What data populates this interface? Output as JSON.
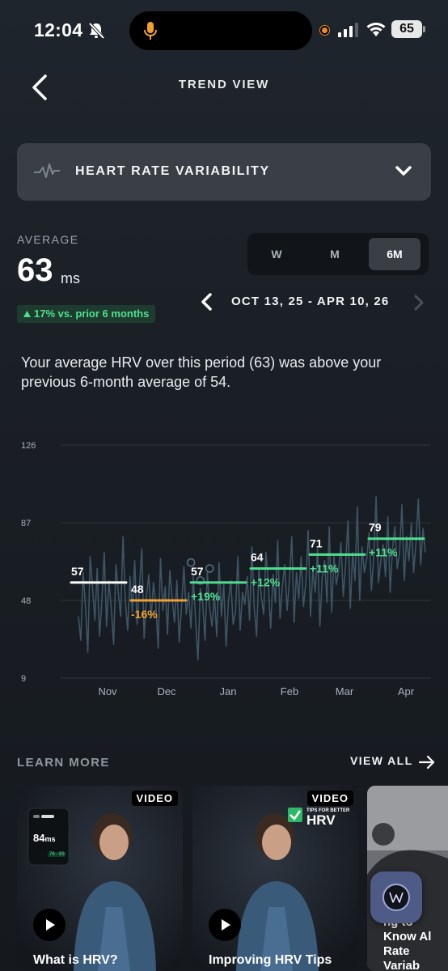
{
  "status_bar": {
    "time": "12:04",
    "battery": "65"
  },
  "header": {
    "title": "TREND VIEW"
  },
  "metric": {
    "label": "HEART RATE VARIABILITY"
  },
  "average": {
    "label": "AVERAGE",
    "value": "63",
    "unit": "ms",
    "delta": "17% vs. prior 6 months"
  },
  "period_tabs": [
    "W",
    "M",
    "6M"
  ],
  "active_period": "6M",
  "date_range": "OCT 13, 25 - APR 10, 26",
  "summary": "Your average HRV over this period (63) was above your previous 6-month average of 54.",
  "colors": {
    "positive": "#4fe08f",
    "negative": "#f0a030",
    "baseline": "#ffffff",
    "line": "#3d5566"
  },
  "chart_data": {
    "type": "line",
    "yticks": [
      126,
      87,
      48,
      9
    ],
    "ylim": [
      9,
      126
    ],
    "months": [
      "Nov",
      "Dec",
      "Jan",
      "Feb",
      "Mar",
      "Apr"
    ],
    "monthly_averages": [
      {
        "value": 57,
        "label": "57",
        "change": "",
        "trend": "baseline"
      },
      {
        "value": 48,
        "label": "48",
        "change": "-16%",
        "trend": "down"
      },
      {
        "value": 57,
        "label": "57",
        "change": "+19%",
        "trend": "up"
      },
      {
        "value": 64,
        "label": "64",
        "change": "+12%",
        "trend": "up"
      },
      {
        "value": 71,
        "label": "71",
        "change": "+11%",
        "trend": "up"
      },
      {
        "value": 79,
        "label": "79",
        "change": "+11%",
        "trend": "up"
      }
    ],
    "daily": [
      40,
      28,
      62,
      45,
      22,
      70,
      55,
      38,
      64,
      30,
      48,
      72,
      35,
      58,
      44,
      26,
      66,
      52,
      40,
      80,
      47,
      33,
      60,
      42,
      68,
      36,
      54,
      74,
      29,
      50,
      61,
      39,
      57,
      46,
      24,
      69,
      43,
      55,
      31,
      63,
      49,
      37,
      58,
      27,
      45,
      65,
      41,
      52,
      34,
      60,
      38,
      18,
      54,
      47,
      28,
      62,
      44,
      35,
      51,
      30,
      67,
      40,
      56,
      25,
      48,
      58,
      36,
      42,
      70,
      33,
      52,
      46,
      60,
      38,
      75,
      44,
      30,
      64,
      50,
      41,
      72,
      56,
      34,
      61,
      47,
      78,
      39,
      55,
      66,
      43,
      58,
      80,
      37,
      62,
      49,
      70,
      45,
      57,
      83,
      40,
      64,
      52,
      74,
      35,
      60,
      68,
      47,
      85,
      42,
      70,
      56,
      63,
      77,
      50,
      66,
      88,
      44,
      72,
      58,
      95,
      48,
      75,
      62,
      69,
      82,
      53,
      70,
      100,
      57,
      68,
      76,
      60,
      90,
      52,
      74,
      85,
      64,
      72,
      96,
      58,
      80,
      68,
      87,
      62,
      77,
      99,
      66,
      84,
      72
    ],
    "markers": [
      {
        "x_index": 48,
        "value": 67
      },
      {
        "x_index": 52,
        "value": 58
      },
      {
        "x_index": 56,
        "value": 64
      }
    ]
  },
  "learn_more": {
    "label": "LEARN MORE",
    "view_all": "VIEW ALL",
    "cards": [
      {
        "badge": "VIDEO",
        "title": "What is HRV?",
        "overlay_value": "84",
        "overlay_unit": "ms",
        "overlay_range": "76 - 89"
      },
      {
        "badge": "VIDEO",
        "title": "Improving HRV Tips",
        "overlay_caption": "TIPS FOR BETTER",
        "overlay_title": "HRV"
      },
      {
        "title": "ng to Know Al Rate Variab"
      }
    ]
  }
}
